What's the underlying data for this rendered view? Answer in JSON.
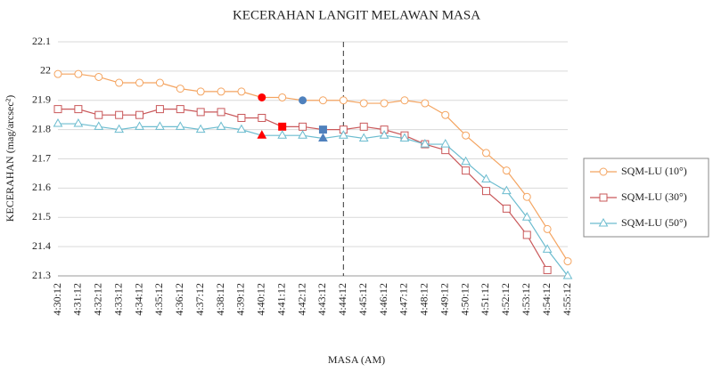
{
  "chart_data": {
    "type": "line",
    "title": "KECERAHAN LANGIT MELAWAN MASA",
    "x_label": "MASA (AM)",
    "y_label": "KECERAHAN (mag/arcsec²)",
    "categories": [
      "4:30:12",
      "4:31:12",
      "4:32:12",
      "4:33:12",
      "4:34:12",
      "4:35:12",
      "4:36:12",
      "4:37:12",
      "4:38:12",
      "4:39:12",
      "4:40:12",
      "4:41:12",
      "4:42:12",
      "4:43:12",
      "4:44:12",
      "4:45:12",
      "4:46:12",
      "4:47:12",
      "4:48:12",
      "4:49:12",
      "4:50:12",
      "4:51:12",
      "4:52:12",
      "4:53:12",
      "4:54:12",
      "4:55:12"
    ],
    "ylim": [
      21.3,
      22.1
    ],
    "yticks": [
      21.3,
      21.4,
      21.5,
      21.6,
      21.7,
      21.8,
      21.9,
      22,
      22.1
    ],
    "grid": true,
    "legend": "right",
    "vline": "4:44:12",
    "series": [
      {
        "name": "SQM-LU (10°)",
        "color": "#f4a460",
        "marker": "circle",
        "values": [
          21.99,
          21.99,
          21.98,
          21.96,
          21.96,
          21.96,
          21.94,
          21.93,
          21.93,
          21.93,
          21.91,
          21.91,
          21.9,
          21.9,
          21.9,
          21.89,
          21.89,
          21.9,
          21.89,
          21.85,
          21.78,
          21.72,
          21.66,
          21.57,
          21.46,
          21.35
        ],
        "point_colors": [
          null,
          null,
          null,
          null,
          null,
          null,
          null,
          null,
          null,
          null,
          "#ff0000",
          null,
          "#4f81bd",
          null,
          null,
          null,
          null,
          null,
          null,
          null,
          null,
          null,
          null,
          null,
          null,
          null
        ]
      },
      {
        "name": "SQM-LU (30°)",
        "color": "#c9585a",
        "marker": "square",
        "values": [
          21.87,
          21.87,
          21.85,
          21.85,
          21.85,
          21.87,
          21.87,
          21.86,
          21.86,
          21.84,
          21.84,
          21.81,
          21.81,
          21.8,
          21.8,
          21.81,
          21.8,
          21.78,
          21.75,
          21.73,
          21.66,
          21.59,
          21.53,
          21.44,
          21.32,
          null
        ],
        "point_colors": [
          null,
          null,
          null,
          null,
          null,
          null,
          null,
          null,
          null,
          null,
          null,
          "#ff0000",
          null,
          "#4f81bd",
          null,
          null,
          null,
          null,
          null,
          null,
          null,
          null,
          null,
          null,
          null,
          null
        ]
      },
      {
        "name": "SQM-LU (50°)",
        "color": "#6cbccf",
        "marker": "triangle",
        "values": [
          21.82,
          21.82,
          21.81,
          21.8,
          21.81,
          21.81,
          21.81,
          21.8,
          21.81,
          21.8,
          21.78,
          21.78,
          21.78,
          21.77,
          21.78,
          21.77,
          21.78,
          21.77,
          21.75,
          21.75,
          21.69,
          21.63,
          21.59,
          21.5,
          21.39,
          21.3
        ],
        "point_colors": [
          null,
          null,
          null,
          null,
          null,
          null,
          null,
          null,
          null,
          null,
          "#ff0000",
          null,
          null,
          "#4f81bd",
          null,
          null,
          null,
          null,
          null,
          null,
          null,
          null,
          null,
          null,
          null,
          null
        ]
      }
    ]
  }
}
